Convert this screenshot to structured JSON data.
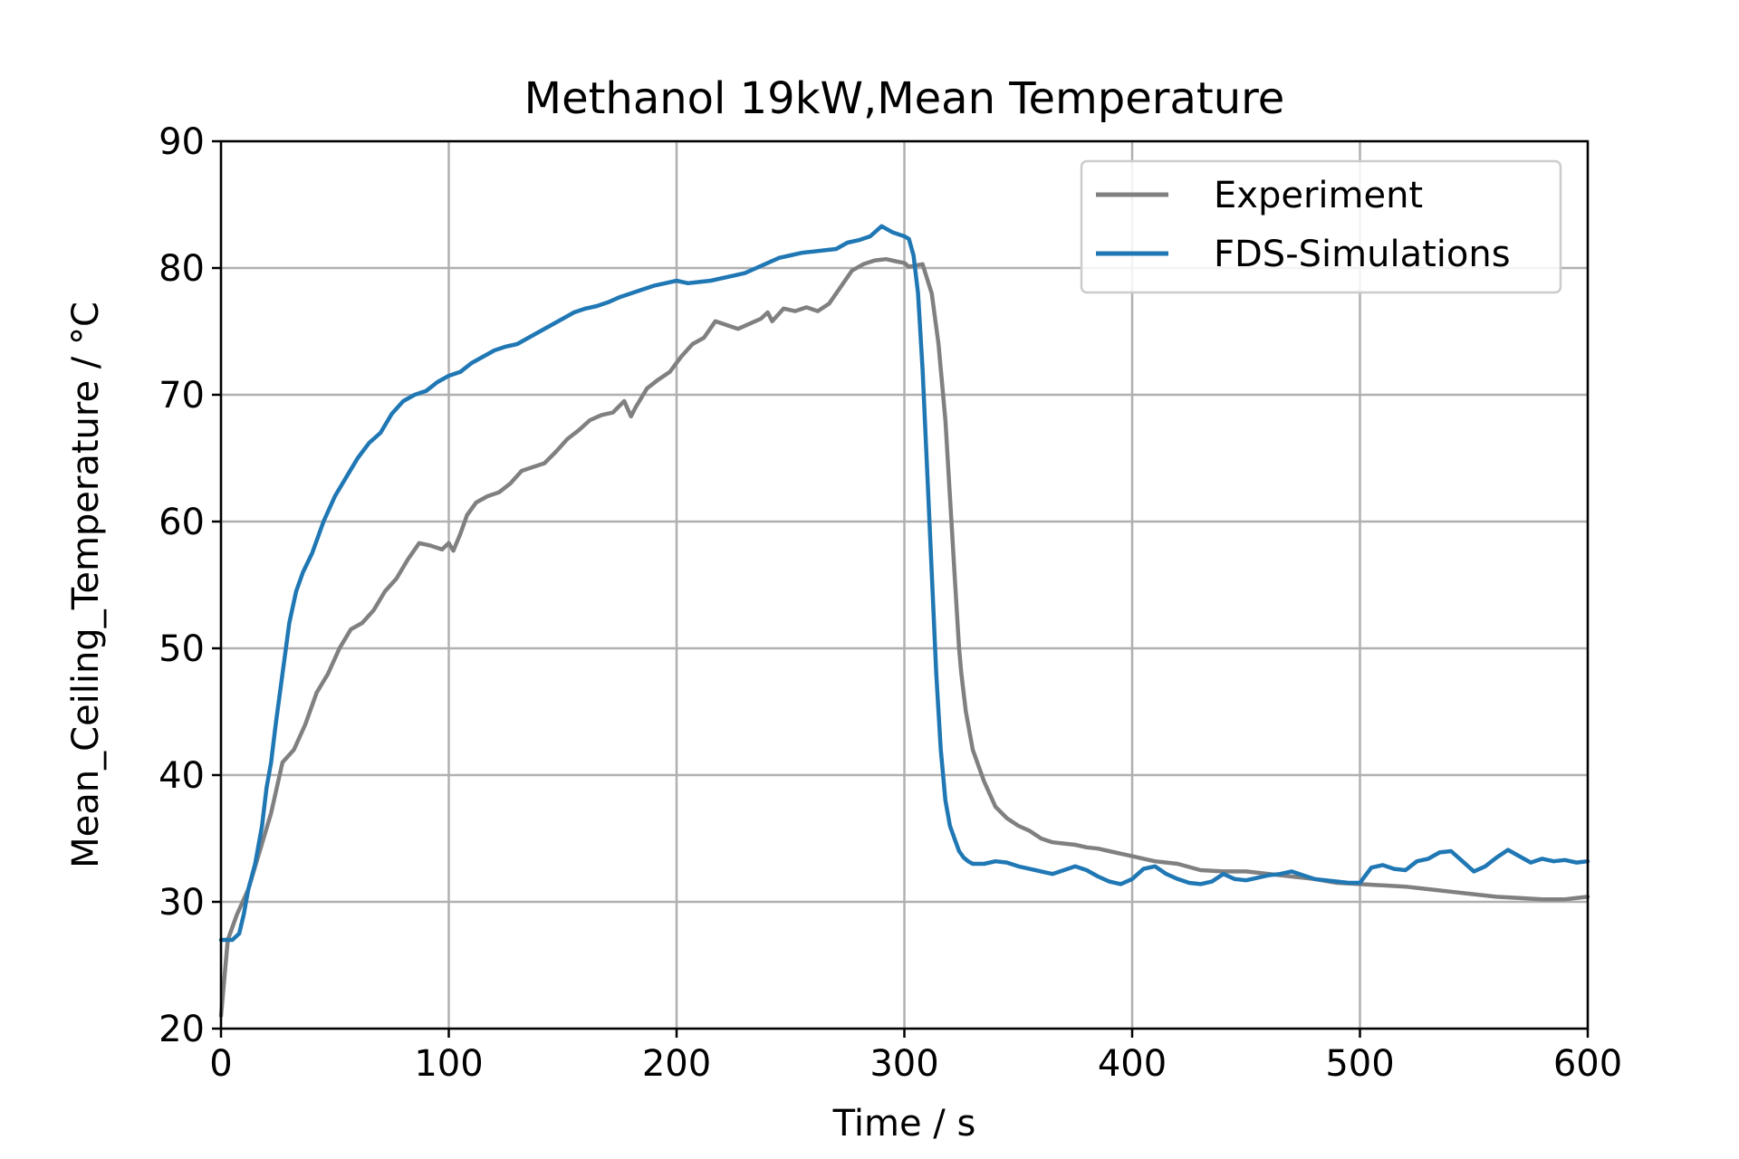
{
  "chart_data": {
    "type": "line",
    "title": "Methanol 19kW,Mean Temperature",
    "xlabel": "Time / s",
    "ylabel": "Mean_Ceiling_Temperature / °C",
    "xlim": [
      0,
      600
    ],
    "ylim": [
      20,
      90
    ],
    "xticks": [
      0,
      100,
      200,
      300,
      400,
      500,
      600
    ],
    "yticks": [
      20,
      30,
      40,
      50,
      60,
      70,
      80,
      90
    ],
    "grid": true,
    "legend_position": "top-right",
    "series": [
      {
        "name": "Experiment",
        "color": "#808080",
        "x": [
          0,
          3,
          7,
          12,
          17,
          22,
          27,
          32,
          37,
          42,
          47,
          52,
          57,
          62,
          67,
          72,
          77,
          82,
          87,
          92,
          97,
          100,
          102,
          105,
          108,
          112,
          117,
          122,
          127,
          132,
          137,
          142,
          147,
          152,
          157,
          162,
          167,
          172,
          177,
          180,
          182,
          187,
          192,
          197,
          202,
          207,
          212,
          217,
          222,
          227,
          232,
          237,
          240,
          242,
          247,
          252,
          257,
          262,
          267,
          272,
          277,
          282,
          287,
          292,
          297,
          300,
          302,
          305,
          308,
          312,
          315,
          318,
          320,
          322,
          324,
          325,
          327,
          330,
          335,
          340,
          345,
          350,
          355,
          360,
          365,
          370,
          375,
          380,
          385,
          390,
          395,
          400,
          410,
          420,
          430,
          440,
          450,
          460,
          470,
          480,
          490,
          500,
          510,
          520,
          530,
          540,
          550,
          560,
          570,
          580,
          590,
          600
        ],
        "y": [
          21,
          27,
          29,
          31,
          34,
          37,
          41,
          42,
          44,
          46.5,
          48,
          50,
          51.5,
          52,
          53,
          54.5,
          55.5,
          57,
          58.3,
          58.1,
          57.8,
          58.3,
          57.7,
          59,
          60.5,
          61.5,
          62,
          62.3,
          63,
          64,
          64.3,
          64.6,
          65.5,
          66.5,
          67.2,
          68,
          68.4,
          68.6,
          69.5,
          68.3,
          69,
          70.5,
          71.2,
          71.8,
          73,
          74,
          74.5,
          75.8,
          75.5,
          75.2,
          75.6,
          76,
          76.5,
          75.8,
          76.8,
          76.6,
          76.9,
          76.6,
          77.2,
          78.5,
          79.8,
          80.3,
          80.6,
          80.7,
          80.5,
          80.4,
          80.1,
          80.2,
          80.3,
          78,
          74,
          68,
          62,
          56,
          50,
          48,
          45,
          42,
          39.5,
          37.5,
          36.6,
          36,
          35.6,
          35,
          34.7,
          34.6,
          34.5,
          34.3,
          34.2,
          34.0,
          33.8,
          33.6,
          33.2,
          33,
          32.5,
          32.4,
          32.4,
          32.2,
          32.0,
          31.8,
          31.5,
          31.4,
          31.3,
          31.2,
          31.0,
          30.8,
          30.6,
          30.4,
          30.3,
          30.2,
          30.2,
          30.4
        ]
      },
      {
        "name": "FDS-Simulations",
        "color": "#1f77b4",
        "x": [
          0,
          5,
          8,
          10,
          12,
          15,
          18,
          20,
          22,
          24,
          27,
          30,
          33,
          36,
          40,
          45,
          50,
          55,
          60,
          65,
          70,
          75,
          80,
          85,
          90,
          95,
          100,
          105,
          110,
          115,
          120,
          125,
          130,
          135,
          140,
          145,
          150,
          155,
          160,
          165,
          170,
          175,
          180,
          185,
          190,
          195,
          200,
          205,
          210,
          215,
          220,
          225,
          230,
          235,
          240,
          245,
          250,
          255,
          260,
          265,
          270,
          275,
          280,
          285,
          290,
          295,
          300,
          302,
          304,
          306,
          308,
          310,
          312,
          314,
          316,
          318,
          320,
          322,
          324,
          326,
          328,
          330,
          335,
          340,
          345,
          350,
          355,
          360,
          365,
          370,
          375,
          380,
          385,
          390,
          395,
          400,
          405,
          410,
          415,
          420,
          425,
          430,
          435,
          440,
          445,
          450,
          455,
          460,
          465,
          470,
          475,
          480,
          485,
          490,
          495,
          500,
          505,
          510,
          515,
          520,
          525,
          530,
          535,
          540,
          545,
          550,
          555,
          560,
          565,
          570,
          575,
          580,
          585,
          590,
          595,
          600
        ],
        "y": [
          27,
          27,
          27.5,
          29,
          31,
          33,
          36,
          39,
          41,
          44,
          48,
          52,
          54.5,
          56,
          57.5,
          60,
          62,
          63.5,
          65,
          66.2,
          67,
          68.5,
          69.5,
          70,
          70.3,
          71,
          71.5,
          71.8,
          72.5,
          73,
          73.5,
          73.8,
          74,
          74.5,
          75,
          75.5,
          76,
          76.5,
          76.8,
          77,
          77.3,
          77.7,
          78,
          78.3,
          78.6,
          78.8,
          79,
          78.8,
          78.9,
          79,
          79.2,
          79.4,
          79.6,
          80,
          80.4,
          80.8,
          81,
          81.2,
          81.3,
          81.4,
          81.5,
          82,
          82.2,
          82.5,
          83.3,
          82.8,
          82.5,
          82.3,
          81,
          78,
          72,
          64,
          56,
          48,
          42,
          38,
          36,
          35,
          34,
          33.5,
          33.2,
          33,
          33,
          33.2,
          33.1,
          32.8,
          32.6,
          32.4,
          32.2,
          32.5,
          32.8,
          32.5,
          32,
          31.6,
          31.4,
          31.8,
          32.6,
          32.8,
          32.2,
          31.8,
          31.5,
          31.4,
          31.6,
          32.2,
          31.8,
          31.7,
          31.9,
          32.1,
          32.2,
          32.4,
          32.1,
          31.8,
          31.7,
          31.6,
          31.5,
          31.5,
          32.7,
          32.9,
          32.6,
          32.5,
          33.2,
          33.4,
          33.9,
          34,
          33.2,
          32.4,
          32.8,
          33.5,
          34.1,
          33.6,
          33.1,
          33.4,
          33.2,
          33.3,
          33.1,
          33.2
        ]
      }
    ]
  }
}
